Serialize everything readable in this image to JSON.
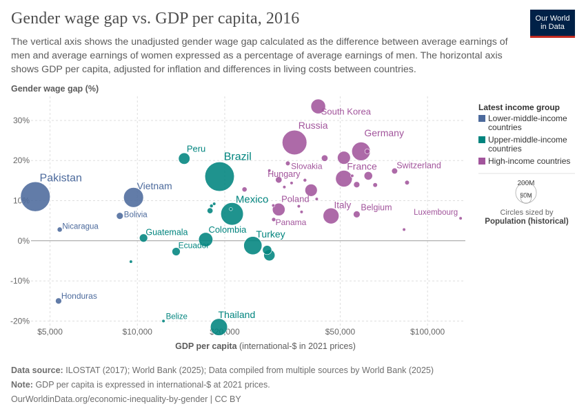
{
  "header": {
    "title": "Gender wage gap vs. GDP per capita, 2016",
    "subtitle": "The vertical axis shows the unadjusted gender wage gap calculated as the difference between average earnings of men and average earnings of women expressed as a percentage of average earnings of men. The horizontal axis shows GDP per capita, adjusted for inflation and differences in living costs between countries.",
    "logo_line1": "Our World",
    "logo_line2": "in Data"
  },
  "legend": {
    "title": "Latest income group",
    "items": [
      {
        "label_line1": "Lower-middle-income",
        "label_line2": "countries",
        "color": "#4c6a9c"
      },
      {
        "label_line1": "Upper-middle-income",
        "label_line2": "countries",
        "color": "#00847e"
      },
      {
        "label_line1": "High-income countries",
        "label_line2": "",
        "color": "#a2559c"
      }
    ],
    "size_big": "200M",
    "size_small": "50M",
    "size_caption": "Circles sized by",
    "size_variable": "Population (historical)"
  },
  "footer": {
    "source_label": "Data source:",
    "source_text": "ILOSTAT (2017); World Bank (2025); Data compiled from multiple sources by World Bank (2025)",
    "note_label": "Note:",
    "note_text": "GDP per capita is expressed in international-$ at 2021 prices.",
    "url": "OurWorldinData.org/economic-inequality-by-gender | CC BY"
  },
  "chart_data": {
    "type": "scatter",
    "title": "Gender wage gap vs. GDP per capita, 2016",
    "xlabel": "GDP per capita",
    "xlabel_suffix": "(international-$ in 2021 prices)",
    "ylabel": "Gender wage gap (%)",
    "xscale": "log",
    "xlim": [
      4300,
      135000
    ],
    "ylim": [
      -22,
      36
    ],
    "xticks": [
      {
        "v": 5000,
        "label": "$5,000"
      },
      {
        "v": 10000,
        "label": "$10,000"
      },
      {
        "v": 20000,
        "label": "$20,000"
      },
      {
        "v": 50000,
        "label": "$50,000"
      },
      {
        "v": 100000,
        "label": "$100,000"
      }
    ],
    "yticks": [
      {
        "v": -20,
        "label": "-20%"
      },
      {
        "v": -10,
        "label": "-10%"
      },
      {
        "v": 0,
        "label": "0%"
      },
      {
        "v": 10,
        "label": "10%"
      },
      {
        "v": 20,
        "label": "20%"
      },
      {
        "v": 30,
        "label": "30%"
      }
    ],
    "groups": {
      "low": "#4c6a9c",
      "upper": "#00847e",
      "high": "#a2559c"
    },
    "points": [
      {
        "name": "Pakistan",
        "x": 4450,
        "y": 11,
        "pop": 210,
        "g": "low",
        "label": true,
        "big": true
      },
      {
        "name": "Vietnam",
        "x": 9700,
        "y": 10.8,
        "pop": 94,
        "g": "low",
        "label": true,
        "big": true
      },
      {
        "name": "Bolivia",
        "x": 8700,
        "y": 6.2,
        "pop": 11,
        "g": "low",
        "label": true
      },
      {
        "name": "Nicaragua",
        "x": 5400,
        "y": 2.8,
        "pop": 6,
        "g": "low",
        "label": true
      },
      {
        "name": "Honduras",
        "x": 5350,
        "y": -15,
        "pop": 9,
        "g": "low",
        "label": true
      },
      {
        "name": "Peru",
        "x": 14500,
        "y": 20.5,
        "pop": 31,
        "g": "upper",
        "label": true
      },
      {
        "name": "Brazil",
        "x": 19200,
        "y": 16,
        "pop": 206,
        "g": "upper",
        "label": true,
        "big": true
      },
      {
        "name": "Mexico",
        "x": 21200,
        "y": 6.7,
        "pop": 121,
        "g": "upper",
        "label": true,
        "big": true
      },
      {
        "name": "Guatemala",
        "x": 10500,
        "y": 0.7,
        "pop": 16,
        "g": "upper",
        "label": true
      },
      {
        "name": "Colombia",
        "x": 17200,
        "y": 0.3,
        "pop": 48,
        "g": "upper",
        "label": true
      },
      {
        "name": "Ecuador",
        "x": 13600,
        "y": -2.7,
        "pop": 16,
        "g": "upper",
        "label": true
      },
      {
        "name": "Turkey",
        "x": 25000,
        "y": -1.2,
        "pop": 79,
        "g": "upper",
        "label": true,
        "big": true
      },
      {
        "name": "Belize",
        "x": 12300,
        "y": -20,
        "pop": 0.4,
        "g": "upper",
        "label": true
      },
      {
        "name": "Thailand",
        "x": 19100,
        "y": -21.5,
        "pop": 69,
        "g": "upper",
        "label": true
      },
      {
        "name": "",
        "x": 28000,
        "y": -2.3,
        "pop": 20,
        "g": "upper",
        "label": false
      },
      {
        "name": "",
        "x": 28500,
        "y": -3.6,
        "pop": 30,
        "g": "upper",
        "label": false
      },
      {
        "name": "",
        "x": 17800,
        "y": 7.5,
        "pop": 8,
        "g": "upper",
        "label": false
      },
      {
        "name": "",
        "x": 18000,
        "y": 8.7,
        "pop": 3,
        "g": "upper",
        "label": false
      },
      {
        "name": "",
        "x": 18400,
        "y": 9.2,
        "pop": 2,
        "g": "upper",
        "label": false
      },
      {
        "name": "",
        "x": 9500,
        "y": -5.2,
        "pop": 2,
        "g": "upper",
        "label": false
      },
      {
        "name": "",
        "x": 21000,
        "y": 7.9,
        "pop": 1,
        "g": "upper",
        "label": false
      },
      {
        "name": "South Korea",
        "x": 42000,
        "y": 33.5,
        "pop": 51,
        "g": "high",
        "label": true
      },
      {
        "name": "Russia",
        "x": 34800,
        "y": 24.5,
        "pop": 145,
        "g": "high",
        "label": true,
        "big": true
      },
      {
        "name": "Germany",
        "x": 59000,
        "y": 22.3,
        "pop": 82,
        "g": "high",
        "label": true,
        "big": true
      },
      {
        "name": "Slovakia",
        "x": 33000,
        "y": 19.3,
        "pop": 5,
        "g": "high",
        "label": true
      },
      {
        "name": "Hungary",
        "x": 30700,
        "y": 15.2,
        "pop": 10,
        "g": "high",
        "label": true
      },
      {
        "name": "France",
        "x": 51500,
        "y": 15.5,
        "pop": 66,
        "g": "high",
        "label": true,
        "big": true
      },
      {
        "name": "Switzerland",
        "x": 77000,
        "y": 17.4,
        "pop": 8.4,
        "g": "high",
        "label": true
      },
      {
        "name": "Poland",
        "x": 30700,
        "y": 7.8,
        "pop": 38,
        "g": "high",
        "label": true
      },
      {
        "name": "Panama",
        "x": 29500,
        "y": 5.3,
        "pop": 4,
        "g": "high",
        "label": true
      },
      {
        "name": "Italy",
        "x": 46500,
        "y": 6.2,
        "pop": 60,
        "g": "high",
        "label": true
      },
      {
        "name": "Belgium",
        "x": 57000,
        "y": 6.6,
        "pop": 11,
        "g": "high",
        "label": true
      },
      {
        "name": "Luxembourg",
        "x": 130000,
        "y": 5.6,
        "pop": 0.6,
        "g": "high",
        "label": true
      },
      {
        "name": "",
        "x": 51500,
        "y": 20.7,
        "pop": 40,
        "g": "high",
        "label": false
      },
      {
        "name": "",
        "x": 44200,
        "y": 20.6,
        "pop": 10,
        "g": "high",
        "label": false
      },
      {
        "name": "",
        "x": 39700,
        "y": 12.6,
        "pop": 36,
        "g": "high",
        "label": false
      },
      {
        "name": "",
        "x": 62500,
        "y": 16.2,
        "pop": 17,
        "g": "high",
        "label": false
      },
      {
        "name": "",
        "x": 57000,
        "y": 14,
        "pop": 9,
        "g": "high",
        "label": false
      },
      {
        "name": "",
        "x": 66000,
        "y": 13.9,
        "pop": 5,
        "g": "high",
        "label": false
      },
      {
        "name": "",
        "x": 62000,
        "y": 22.3,
        "pop": 6,
        "g": "high",
        "label": false
      },
      {
        "name": "",
        "x": 85000,
        "y": 14.5,
        "pop": 5,
        "g": "high",
        "label": false
      },
      {
        "name": "",
        "x": 37800,
        "y": 15.1,
        "pop": 3,
        "g": "high",
        "label": false
      },
      {
        "name": "",
        "x": 34000,
        "y": 14.4,
        "pop": 2,
        "g": "high",
        "label": false
      },
      {
        "name": "",
        "x": 36000,
        "y": 8.6,
        "pop": 1.5,
        "g": "high",
        "label": false
      },
      {
        "name": "",
        "x": 32100,
        "y": 13.4,
        "pop": 1.5,
        "g": "high",
        "label": false
      },
      {
        "name": "",
        "x": 28500,
        "y": 17.5,
        "pop": 1.5,
        "g": "high",
        "label": false
      },
      {
        "name": "",
        "x": 36800,
        "y": 7.2,
        "pop": 1.3,
        "g": "high",
        "label": false
      },
      {
        "name": "",
        "x": 23400,
        "y": 12.8,
        "pop": 6,
        "g": "high",
        "label": false
      },
      {
        "name": "",
        "x": 29400,
        "y": 8.8,
        "pop": 1.3,
        "g": "high",
        "label": false
      },
      {
        "name": "",
        "x": 41500,
        "y": 10.4,
        "pop": 1.3,
        "g": "high",
        "label": false
      },
      {
        "name": "",
        "x": 55000,
        "y": 16.2,
        "pop": 2.2,
        "g": "high",
        "label": false
      },
      {
        "name": "",
        "x": 83000,
        "y": 2.8,
        "pop": 1,
        "g": "high",
        "label": false
      }
    ]
  }
}
